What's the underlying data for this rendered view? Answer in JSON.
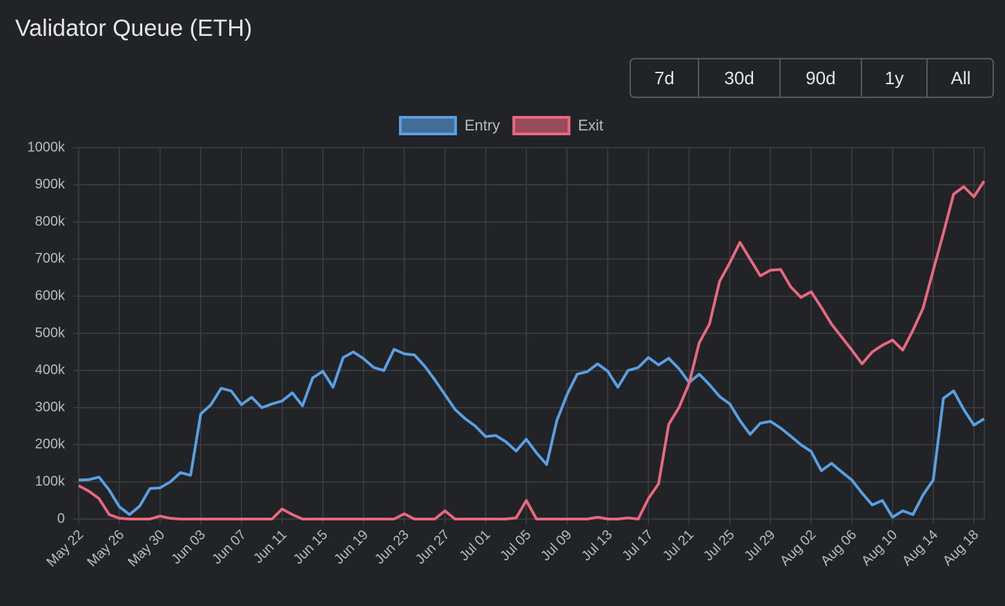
{
  "range_selector": [
    "7d",
    "30d",
    "90d",
    "1y",
    "All"
  ],
  "chart_data": {
    "type": "line",
    "title": "Validator Queue (ETH)",
    "categories": [
      "May 22",
      null,
      null,
      null,
      "May 26",
      null,
      null,
      null,
      "May 30",
      null,
      null,
      null,
      "Jun 03",
      null,
      null,
      null,
      "Jun 07",
      null,
      null,
      null,
      "Jun 11",
      null,
      null,
      null,
      "Jun 15",
      null,
      null,
      null,
      "Jun 19",
      null,
      null,
      null,
      "Jun 23",
      null,
      null,
      null,
      "Jun 27",
      null,
      null,
      null,
      "Jul 01",
      null,
      null,
      null,
      "Jul 05",
      null,
      null,
      null,
      "Jul 09",
      null,
      null,
      null,
      "Jul 13",
      null,
      null,
      null,
      "Jul 17",
      null,
      null,
      null,
      "Jul 21",
      null,
      null,
      null,
      "Jul 25",
      null,
      null,
      null,
      "Jul 29",
      null,
      null,
      null,
      "Aug 02",
      null,
      null,
      null,
      "Aug 06",
      null,
      null,
      null,
      "Aug 10",
      null,
      null,
      null,
      "Aug 14",
      null,
      null,
      null,
      "Aug 18",
      null
    ],
    "series": [
      {
        "name": "Entry",
        "color": "#5a9fe2",
        "values": [
          105000,
          106000,
          113000,
          78000,
          33000,
          12000,
          35000,
          82000,
          84000,
          100000,
          125000,
          118000,
          283000,
          308000,
          352000,
          345000,
          308000,
          328000,
          300000,
          310000,
          318000,
          340000,
          305000,
          380000,
          398000,
          355000,
          435000,
          450000,
          432000,
          408000,
          400000,
          457000,
          445000,
          442000,
          412000,
          375000,
          335000,
          295000,
          270000,
          250000,
          222000,
          225000,
          208000,
          183000,
          215000,
          178000,
          147000,
          265000,
          335000,
          390000,
          397000,
          418000,
          398000,
          355000,
          400000,
          408000,
          435000,
          415000,
          433000,
          405000,
          368000,
          390000,
          362000,
          330000,
          310000,
          265000,
          228000,
          258000,
          263000,
          245000,
          223000,
          200000,
          182000,
          130000,
          150000,
          127000,
          105000,
          70000,
          38000,
          50000,
          5000,
          22000,
          12000,
          65000,
          105000,
          325000,
          345000,
          295000,
          253000,
          270000
        ]
      },
      {
        "name": "Exit",
        "color": "#e8687f",
        "values": [
          90000,
          75000,
          55000,
          12000,
          2000,
          0,
          0,
          0,
          8000,
          2000,
          0,
          0,
          0,
          0,
          0,
          0,
          0,
          0,
          0,
          0,
          27000,
          12000,
          0,
          0,
          0,
          0,
          0,
          0,
          0,
          0,
          0,
          0,
          14000,
          0,
          0,
          0,
          22000,
          0,
          0,
          0,
          0,
          0,
          0,
          3000,
          50000,
          0,
          0,
          0,
          0,
          0,
          0,
          5000,
          0,
          0,
          3000,
          0,
          55000,
          95000,
          255000,
          300000,
          365000,
          475000,
          525000,
          640000,
          690000,
          745000,
          700000,
          655000,
          670000,
          672000,
          625000,
          597000,
          612000,
          570000,
          525000,
          490000,
          455000,
          418000,
          450000,
          468000,
          482000,
          455000,
          508000,
          568000,
          670000,
          770000,
          875000,
          895000,
          868000,
          910000
        ]
      }
    ],
    "ylim": [
      0,
      1000000
    ],
    "yticks": [
      0,
      {
        "value": 100000,
        "label": "100k"
      },
      {
        "value": 200000,
        "label": "200k"
      },
      {
        "value": 300000,
        "label": "300k"
      },
      {
        "value": 400000,
        "label": "400k"
      },
      {
        "value": 500000,
        "label": "500k"
      },
      {
        "value": 600000,
        "label": "600k"
      },
      {
        "value": 700000,
        "label": "700k"
      },
      {
        "value": 800000,
        "label": "800k"
      },
      {
        "value": 900000,
        "label": "900k"
      },
      {
        "value": 1000000,
        "label": "1000k"
      }
    ],
    "grid": true,
    "legend": "top"
  }
}
